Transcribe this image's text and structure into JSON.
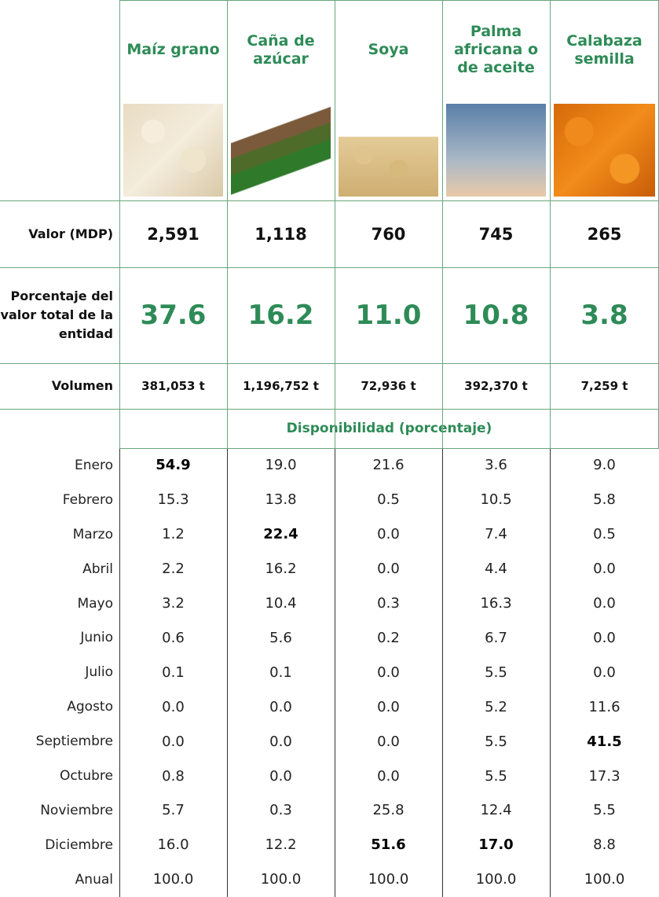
{
  "products": [
    "Maíz grano",
    "Caña de azúcar",
    "Soya",
    "Palma africana o de aceite",
    "Calabaza semilla"
  ],
  "summary": [
    {
      "label": "Valor (MDP)",
      "values": [
        "2,591",
        "1,118",
        "760",
        "745",
        "265"
      ]
    },
    {
      "label": "Porcentaje del valor total de la entidad",
      "values": [
        "37.6",
        "16.2",
        "11.0",
        "10.8",
        "3.8"
      ]
    },
    {
      "label": "Volumen",
      "values": [
        "381,053 t",
        "1,196,752 t",
        "72,936 t",
        "392,370 t",
        "7,259 t"
      ]
    }
  ],
  "availability": {
    "title": "Disponibilidad (porcentaje)",
    "rows": [
      {
        "month": "Enero",
        "values": [
          "54.9",
          "19.0",
          "21.6",
          "3.6",
          "9.0"
        ]
      },
      {
        "month": "Febrero",
        "values": [
          "15.3",
          "13.8",
          "0.5",
          "10.5",
          "5.8"
        ]
      },
      {
        "month": "Marzo",
        "values": [
          "1.2",
          "22.4",
          "0.0",
          "7.4",
          "0.5"
        ]
      },
      {
        "month": "Abril",
        "values": [
          "2.2",
          "16.2",
          "0.0",
          "4.4",
          "0.0"
        ]
      },
      {
        "month": "Mayo",
        "values": [
          "3.2",
          "10.4",
          "0.3",
          "16.3",
          "0.0"
        ]
      },
      {
        "month": "Junio",
        "values": [
          "0.6",
          "5.6",
          "0.2",
          "6.7",
          "0.0"
        ]
      },
      {
        "month": "Julio",
        "values": [
          "0.1",
          "0.1",
          "0.0",
          "5.5",
          "0.0"
        ]
      },
      {
        "month": "Agosto",
        "values": [
          "0.0",
          "0.0",
          "0.0",
          "5.2",
          "11.6"
        ]
      },
      {
        "month": "Septiembre",
        "values": [
          "0.0",
          "0.0",
          "0.0",
          "5.5",
          "41.5"
        ]
      },
      {
        "month": "Octubre",
        "values": [
          "0.8",
          "0.0",
          "0.0",
          "5.5",
          "17.3"
        ]
      },
      {
        "month": "Noviembre",
        "values": [
          "5.7",
          "0.3",
          "25.8",
          "12.4",
          "5.5"
        ]
      },
      {
        "month": "Diciembre",
        "values": [
          "16.0",
          "12.2",
          "51.6",
          "17.0",
          "8.8"
        ]
      },
      {
        "month": "Anual",
        "values": [
          "100.0",
          "100.0",
          "100.0",
          "100.0",
          "100.0"
        ]
      }
    ]
  }
}
